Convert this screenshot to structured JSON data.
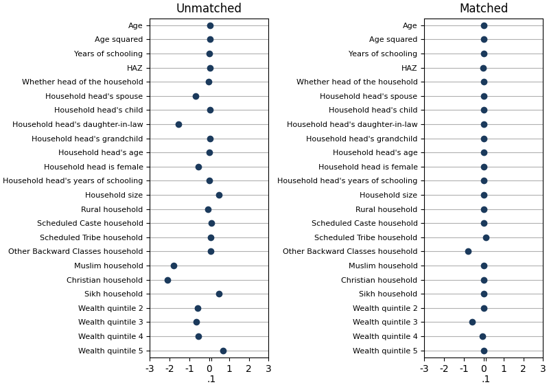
{
  "chart_data": [
    {
      "type": "dot",
      "title": "Unmatched",
      "orientation": "horizontal",
      "grid": "y",
      "color": "#1b3a5c",
      "categories": [
        "Age",
        "Age squared",
        "Years of schooling",
        "HAZ",
        "Whether head of the household",
        "Household head's spouse",
        "Household head's child",
        "Household head's daughter-in-law",
        "Household head's grandchild",
        "Household head's age",
        "Household head is female",
        "Household head's years of schooling",
        "Household size",
        "Rural household",
        "Scheduled Caste household",
        "Scheduled Tribe household",
        "Other Backward Classes household",
        "Muslim household",
        "Christian household",
        "Sikh household",
        "Wealth quintile 2",
        "Wealth quintile 3",
        "Wealth quintile 4",
        "Wealth quintile 5"
      ],
      "values": [
        0.05,
        0.05,
        0.0,
        0.04,
        -0.02,
        -0.7,
        0.04,
        -1.55,
        0.04,
        0.0,
        -0.55,
        0.0,
        0.5,
        -0.08,
        0.1,
        0.08,
        0.08,
        -1.8,
        -2.1,
        0.5,
        -0.6,
        -0.65,
        -0.55,
        0.7
      ],
      "xlim": [
        -3,
        3
      ],
      "xticks": [
        -3,
        -2,
        -1,
        0,
        {
          "value": 0.1,
          "label": ".1"
        },
        1,
        2,
        3
      ]
    },
    {
      "type": "dot",
      "title": "Matched",
      "orientation": "horizontal",
      "grid": "y",
      "color": "#1b3a5c",
      "categories": [
        "Age",
        "Age squared",
        "Years of schooling",
        "HAZ",
        "Whether head of the household",
        "Household head's spouse",
        "Household head's child",
        "Household head's daughter-in-law",
        "Household head's grandchild",
        "Household head's age",
        "Household head is female",
        "Household head's years of schooling",
        "Household size",
        "Rural household",
        "Scheduled Caste household",
        "Scheduled Tribe household",
        "Other Backward Classes household",
        "Muslim household",
        "Christian household",
        "Sikh household",
        "Wealth quintile 2",
        "Wealth quintile 3",
        "Wealth quintile 4",
        "Wealth quintile 5"
      ],
      "values": [
        0.0,
        0.0,
        0.0,
        -0.02,
        0.0,
        0.0,
        0.02,
        0.0,
        0.0,
        0.0,
        0.0,
        0.0,
        0.0,
        0.0,
        0.0,
        0.1,
        -0.8,
        0.0,
        0.02,
        0.0,
        0.02,
        -0.6,
        -0.05,
        0.0
      ],
      "xlim": [
        -3,
        3
      ],
      "xticks": [
        -3,
        -2,
        -1,
        0,
        {
          "value": 0.1,
          "label": ".1"
        },
        1,
        2,
        3
      ]
    }
  ]
}
